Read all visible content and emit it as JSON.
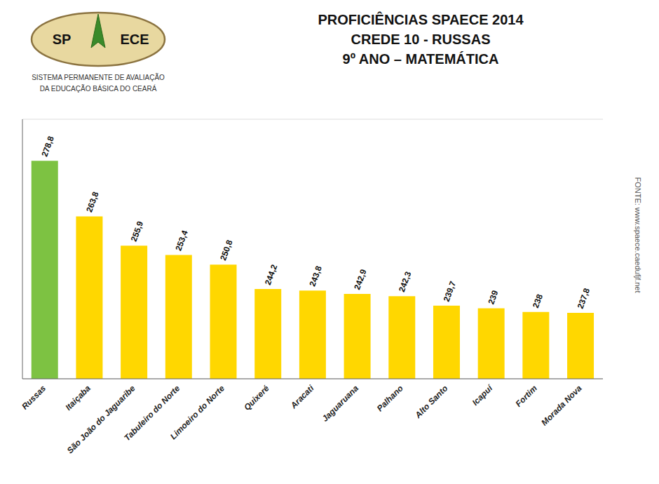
{
  "chart_data": {
    "type": "bar",
    "title": "PROFICIÊNCIAS SPAECE 2014\nCREDE 10 - RUSSAS\n9º ANO – MATEMÁTICA",
    "categories": [
      "Russas",
      "Itaiçaba",
      "São João do Jaguaribe",
      "Tabuleiro do Norte",
      "Limoeiro do Norte",
      "Quixeré",
      "Aracati",
      "Jaguaruana",
      "Palhano",
      "Alto Santo",
      "Icapuí",
      "Fortim",
      "Morada Nova"
    ],
    "values": [
      278.8,
      263.8,
      255.9,
      253.4,
      250.8,
      244.2,
      243.8,
      242.9,
      242.3,
      239.7,
      239.0,
      238.0,
      237.8
    ],
    "value_labels": [
      "278,8",
      "263,8",
      "255,9",
      "253,4",
      "250,8",
      "244,2",
      "243,8",
      "242,9",
      "242,3",
      "239,7",
      "239",
      "238",
      "237,8"
    ],
    "colors": [
      "#7DC242",
      "#FFD700",
      "#FFD700",
      "#FFD700",
      "#FFD700",
      "#FFD700",
      "#FFD700",
      "#FFD700",
      "#FFD700",
      "#FFD700",
      "#FFD700",
      "#FFD700",
      "#FFD700"
    ],
    "ylim": [
      220,
      290
    ],
    "yticks": [
      220,
      230,
      240,
      250,
      260,
      270,
      280,
      290
    ],
    "grid": true,
    "data_labels": true,
    "tick_labels": "x",
    "annotations": [
      "FONTE: www.spaece.caedufjf.net",
      "SP",
      "ECE",
      "SISTEMA PERMANENTE DE AVALIAÇÃO",
      "DA EDUCAÇÃO BÁSICA DO CEARÁ"
    ]
  }
}
